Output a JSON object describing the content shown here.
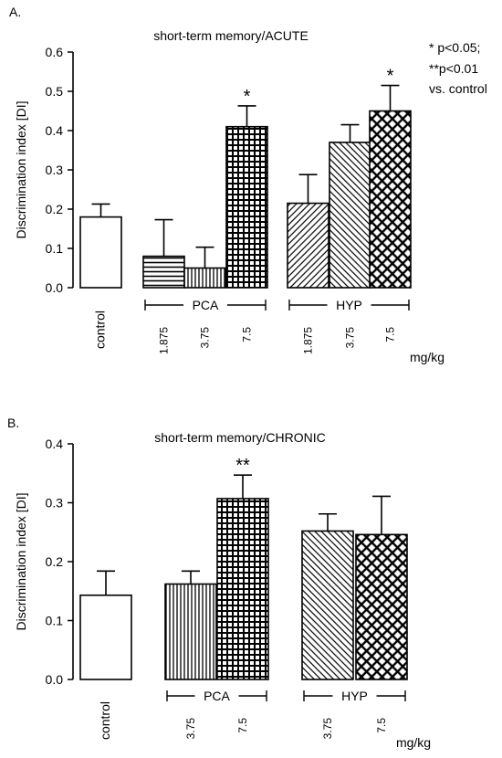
{
  "chart_data": [
    {
      "panel_label": "A.",
      "type": "bar",
      "title": "short-term memory/ACUTE",
      "ylabel": "Discrimination index [DI]",
      "ylim": [
        0,
        0.6
      ],
      "yticks": [
        "0.0",
        "0.1",
        "0.2",
        "0.3",
        "0.4",
        "0.5",
        "0.6"
      ],
      "unit_label": "mg/kg",
      "annotation_lines": [
        "* p<0.05;",
        "**p<0.01",
        "vs. control"
      ],
      "groups": [
        {
          "label": "PCA",
          "bars": [
            1,
            2,
            3
          ]
        },
        {
          "label": "HYP",
          "bars": [
            4,
            5,
            6
          ]
        }
      ],
      "bars": [
        {
          "label": "control",
          "value": 0.18,
          "err": 0.033,
          "pattern": "none",
          "sig": ""
        },
        {
          "label": "1.875",
          "value": 0.08,
          "err": 0.093,
          "pattern": "horizontal",
          "sig": ""
        },
        {
          "label": "3.75",
          "value": 0.05,
          "err": 0.053,
          "pattern": "vertical",
          "sig": ""
        },
        {
          "label": "7.5",
          "value": 0.41,
          "err": 0.053,
          "pattern": "grid",
          "sig": "*"
        },
        {
          "label": "1.875",
          "value": 0.215,
          "err": 0.073,
          "pattern": "diag-dense",
          "sig": ""
        },
        {
          "label": "3.75",
          "value": 0.37,
          "err": 0.045,
          "pattern": "diag",
          "sig": ""
        },
        {
          "label": "7.5",
          "value": 0.45,
          "err": 0.065,
          "pattern": "crosshatch",
          "sig": "*"
        }
      ]
    },
    {
      "panel_label": "B.",
      "type": "bar",
      "title": "short-term memory/CHRONIC",
      "ylabel": "Discrimination index [DI]",
      "ylim": [
        0,
        0.4
      ],
      "yticks": [
        "0.0",
        "0.1",
        "0.2",
        "0.3",
        "0.4"
      ],
      "unit_label": "mg/kg",
      "annotation_lines": [],
      "groups": [
        {
          "label": "PCA",
          "bars": [
            1,
            2
          ]
        },
        {
          "label": "HYP",
          "bars": [
            3,
            4
          ]
        }
      ],
      "bars": [
        {
          "label": "control",
          "value": 0.143,
          "err": 0.041,
          "pattern": "none",
          "sig": ""
        },
        {
          "label": "3.75",
          "value": 0.162,
          "err": 0.022,
          "pattern": "vertical",
          "sig": ""
        },
        {
          "label": "7.5",
          "value": 0.307,
          "err": 0.04,
          "pattern": "grid",
          "sig": "**"
        },
        {
          "label": "3.75",
          "value": 0.252,
          "err": 0.029,
          "pattern": "diag",
          "sig": ""
        },
        {
          "label": "7.5",
          "value": 0.246,
          "err": 0.065,
          "pattern": "crosshatch",
          "sig": ""
        }
      ]
    }
  ]
}
